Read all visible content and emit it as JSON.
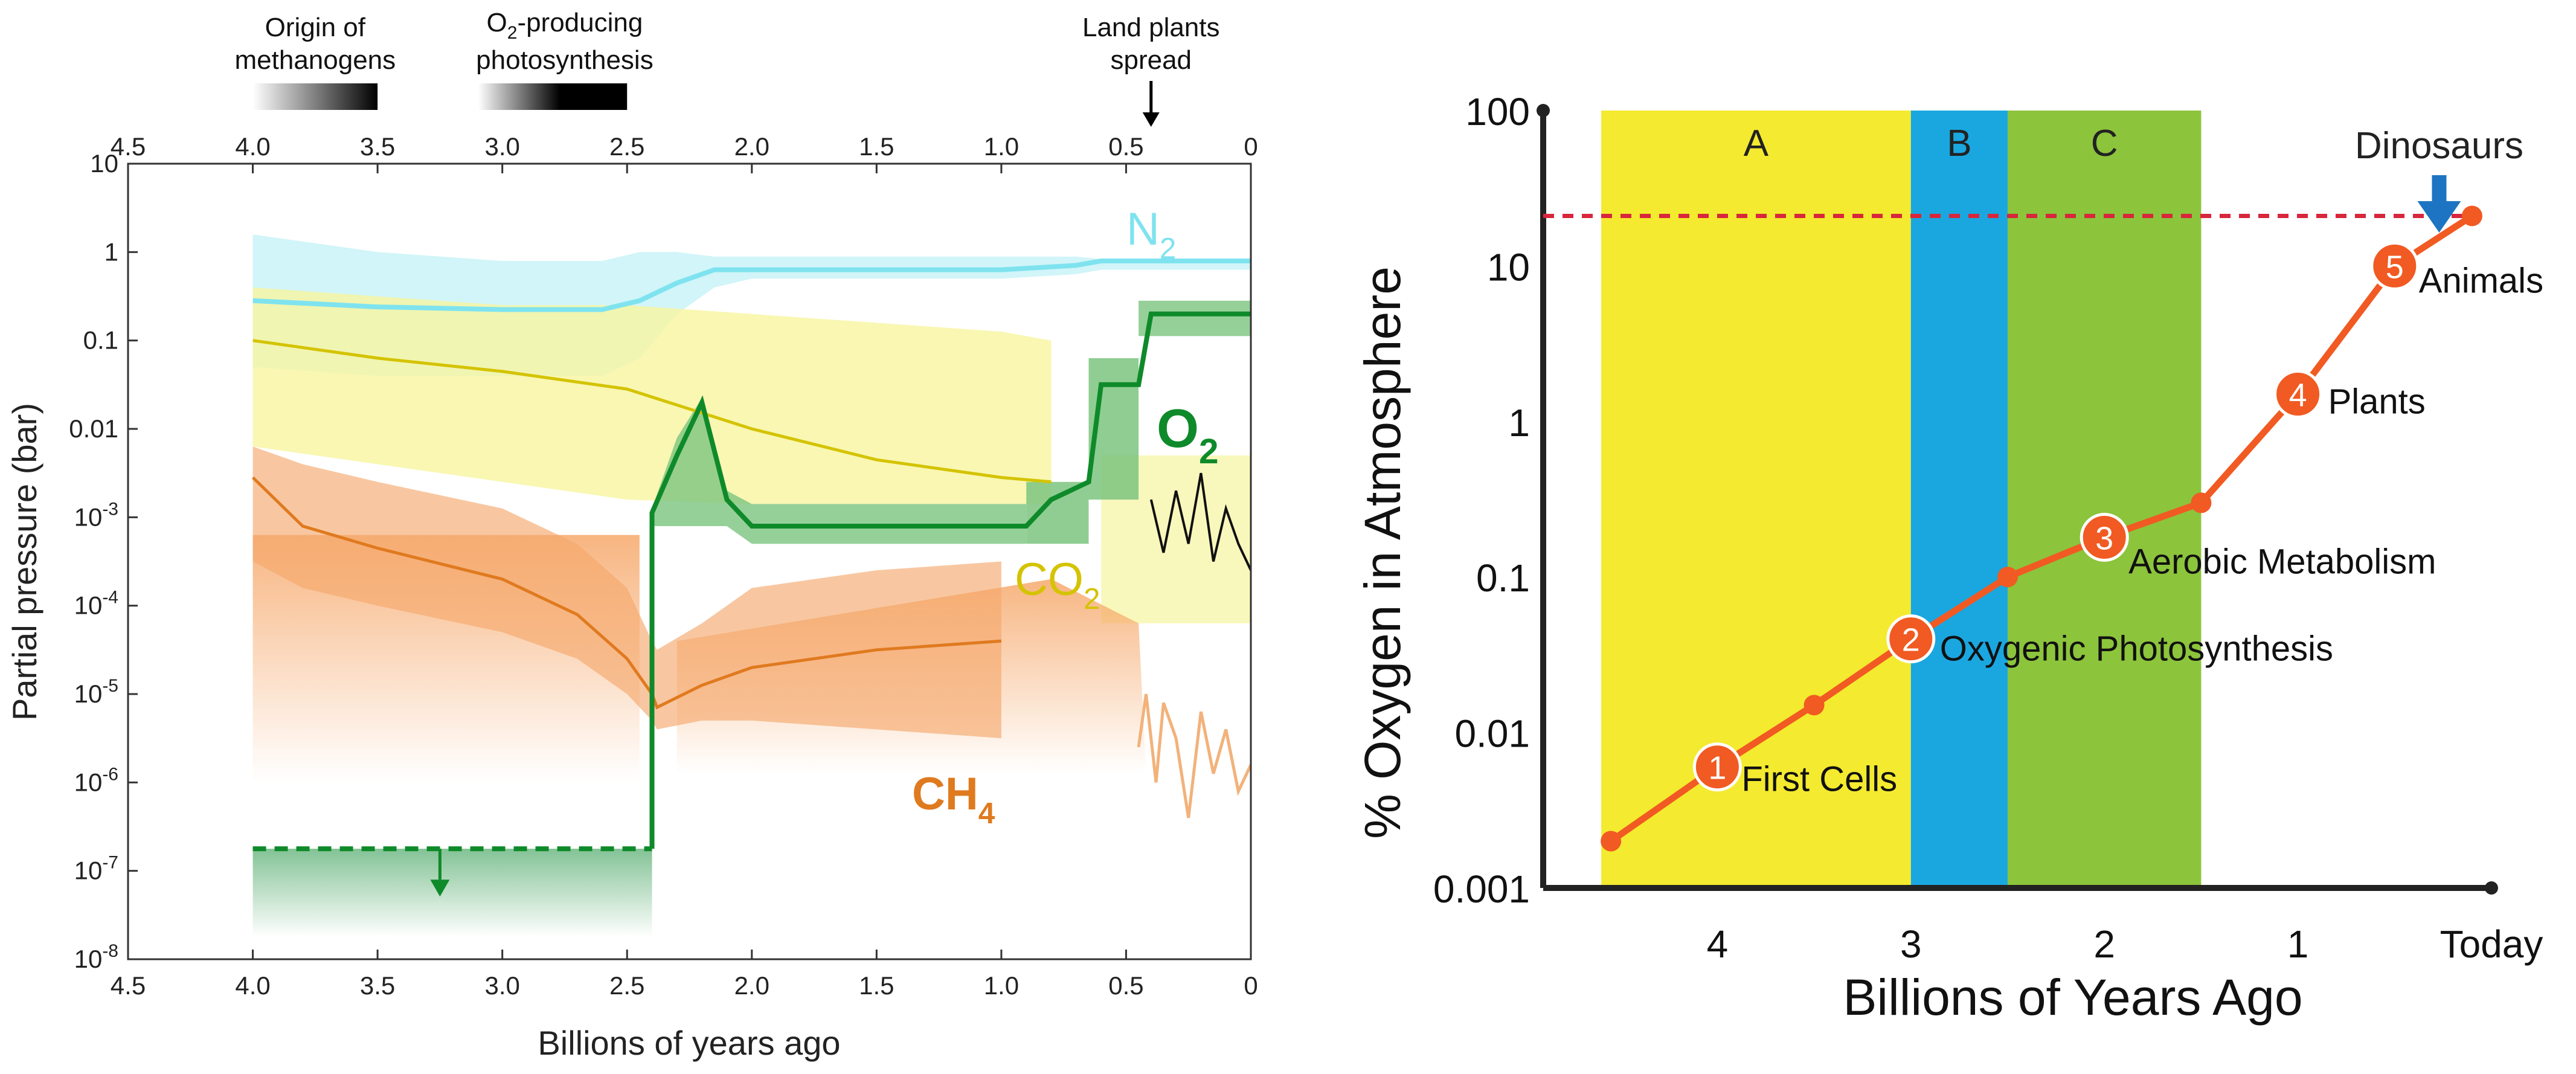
{
  "colors": {
    "n2": "#7fe3ef",
    "n2_band": "#c9f3f8",
    "co2": "#d4c300",
    "co2_band": "#f7f59f",
    "ch4": "#e07a1f",
    "ch4_band": "#f6b98a",
    "ch4_light": "#f2b27a",
    "o2": "#0f8a2a",
    "o2_band": "#7cc47f",
    "o2_band_light": "#cde8cf",
    "co2_measured": "#111111",
    "era_a": "#f4ea2f",
    "era_b": "#1aa7e0",
    "era_c": "#8cc43c",
    "oxygen_curve": "#f15a22",
    "dinosaur_arrow": "#1d74c2",
    "modern_line": "#d8263c",
    "axis": "#222222"
  },
  "chart_data": [
    {
      "type": "line",
      "title": "",
      "xlabel": "Billions of years ago",
      "ylabel": "Partial pressure (bar)",
      "xlim": [
        4.5,
        0
      ],
      "x_ticks": [
        "4.5",
        "4.0",
        "3.5",
        "3.0",
        "2.5",
        "2.0",
        "1.5",
        "1.0",
        "0.5",
        "0"
      ],
      "ylim_log10": [
        -8,
        1
      ],
      "y_ticks": [
        {
          "base": "10",
          "exp": "-8"
        },
        {
          "base": "10",
          "exp": "-7"
        },
        {
          "base": "10",
          "exp": "-6"
        },
        {
          "base": "10",
          "exp": "-5"
        },
        {
          "base": "10",
          "exp": "-4"
        },
        {
          "base": "10",
          "exp": "-3"
        },
        {
          "base": "0.01",
          "exp": ""
        },
        {
          "base": "0.1",
          "exp": ""
        },
        {
          "base": "1",
          "exp": ""
        },
        {
          "base": "10",
          "exp": ""
        }
      ],
      "series": [
        {
          "name": "N2",
          "label_main": "N",
          "label_sub": "2",
          "x": [
            4.0,
            3.5,
            3.0,
            2.6,
            2.45,
            2.3,
            2.15,
            2.0,
            1.0,
            0.7,
            0.6,
            0.4,
            0
          ],
          "log10_values": [
            -0.55,
            -0.62,
            -0.65,
            -0.65,
            -0.55,
            -0.35,
            -0.2,
            -0.2,
            -0.2,
            -0.15,
            -0.1,
            -0.1,
            -0.1
          ],
          "band_upper": [
            0.2,
            0.0,
            -0.1,
            -0.1,
            0.0,
            0.0,
            -0.05,
            -0.05,
            -0.05,
            -0.05,
            -0.08,
            -0.08,
            -0.08
          ],
          "band_lower": [
            -1.3,
            -1.4,
            -1.4,
            -1.4,
            -1.2,
            -0.7,
            -0.4,
            -0.3,
            -0.3,
            -0.25,
            -0.2,
            -0.2,
            -0.2
          ]
        },
        {
          "name": "CO2",
          "label_main": "CO",
          "label_sub": "2",
          "x": [
            4.0,
            3.5,
            3.0,
            2.5,
            2.0,
            1.5,
            1.0,
            0.8
          ],
          "log10_values": [
            -1.0,
            -1.2,
            -1.35,
            -1.55,
            -2.0,
            -2.35,
            -2.55,
            -2.6
          ],
          "band_upper": [
            -0.4,
            -0.5,
            -0.6,
            -0.6,
            -0.7,
            -0.8,
            -0.9,
            -1.0
          ],
          "band_lower": [
            -2.2,
            -2.4,
            -2.6,
            -2.8,
            -2.85,
            -2.85,
            -2.85,
            -2.85
          ]
        },
        {
          "name": "CH4",
          "label_main": "CH",
          "label_sub": "4",
          "x": [
            4.0,
            3.8,
            3.5,
            3.0,
            2.7,
            2.5,
            2.4,
            2.38,
            2.2,
            2.0,
            1.5,
            1.0
          ],
          "log10_values": [
            -2.55,
            -3.1,
            -3.35,
            -3.7,
            -4.1,
            -4.6,
            -5.0,
            -5.15,
            -4.9,
            -4.7,
            -4.5,
            -4.4
          ],
          "band_upper": [
            -2.2,
            -2.4,
            -2.6,
            -2.9,
            -3.3,
            -3.8,
            -4.4,
            -4.5,
            -4.2,
            -3.8,
            -3.6,
            -3.5
          ],
          "band_lower": [
            -3.5,
            -3.8,
            -4.0,
            -4.3,
            -4.6,
            -5.0,
            -5.3,
            -5.4,
            -5.3,
            -5.3,
            -5.4,
            -5.5
          ]
        },
        {
          "name": "O2",
          "label_main": "O",
          "label_sub": "2",
          "x": [
            4.0,
            2.4,
            2.4,
            2.3,
            2.2,
            2.1,
            2.0,
            1.5,
            0.9,
            0.8,
            0.65,
            0.6,
            0.45,
            0.4,
            0.3,
            0
          ],
          "log10_values": [
            -6.75,
            -6.75,
            -2.95,
            -2.3,
            -1.7,
            -2.8,
            -3.1,
            -3.1,
            -3.1,
            -2.8,
            -2.6,
            -1.5,
            -1.5,
            -0.7,
            -0.7,
            -0.7
          ],
          "upper_limit": {
            "x": [
              4.0,
              2.4
            ],
            "log10_value": -6.75,
            "arrow_at_x": 3.25
          }
        },
        {
          "name": "CO2 (recent record)",
          "x": [
            0.4,
            0.35,
            0.3,
            0.25,
            0.2,
            0.15,
            0.1,
            0.05,
            0
          ],
          "log10_values": [
            -2.8,
            -3.4,
            -2.7,
            -3.3,
            -2.5,
            -3.5,
            -2.9,
            -3.3,
            -3.6
          ]
        }
      ],
      "top_axis": {
        "ticks": [
          "4.5",
          "4.0",
          "3.5",
          "3.0",
          "2.5",
          "2.0",
          "1.5",
          "1.0",
          "0.5",
          "0"
        ]
      },
      "annotations": [
        {
          "text_lines": [
            "Origin of",
            "methanogens"
          ],
          "range": [
            4.0,
            3.5
          ]
        },
        {
          "text_lines": [
            "O",
            "-producing",
            "photosynthesis"
          ],
          "range": [
            3.0,
            2.5
          ],
          "sub": "2"
        },
        {
          "text_lines": [
            "Land plants",
            "spread"
          ],
          "arrow_at_x": 0.4
        }
      ]
    },
    {
      "type": "line",
      "title": "",
      "xlabel": "Billions of Years Ago",
      "ylabel": "% Oxygen in Atmosphere",
      "x_ticks": [
        "4",
        "3",
        "2",
        "1",
        "Today"
      ],
      "x_tick_values": [
        4,
        3,
        2,
        1,
        0
      ],
      "xlim": [
        4.9,
        0
      ],
      "y_ticks": [
        "0.001",
        "0.01",
        "0.1",
        "1",
        "10",
        "100"
      ],
      "ylim_log10": [
        -3,
        2
      ],
      "reference_line": {
        "value": 21
      },
      "eras": [
        {
          "label": "A",
          "from": 4.6,
          "to": 3.0
        },
        {
          "label": "B",
          "from": 3.0,
          "to": 2.5
        },
        {
          "label": "C",
          "from": 2.5,
          "to": 1.5
        }
      ],
      "series": [
        {
          "name": "atmospheric oxygen",
          "x": [
            4.55,
            4.0,
            3.5,
            3.0,
            2.5,
            2.0,
            1.5,
            1.0,
            0.5,
            0.1
          ],
          "values": [
            0.002,
            0.006,
            0.015,
            0.04,
            0.1,
            0.18,
            0.3,
            1.5,
            10,
            21
          ]
        }
      ],
      "milestones": [
        {
          "number": "1",
          "label": "First Cells",
          "x": 4.0,
          "value": 0.006
        },
        {
          "number": "2",
          "label": "Oxygenic Photosynthesis",
          "x": 3.0,
          "value": 0.04
        },
        {
          "number": "3",
          "label": "Aerobic Metabolism",
          "x": 2.0,
          "value": 0.18
        },
        {
          "number": "4",
          "label": "Plants",
          "x": 1.0,
          "value": 1.5
        },
        {
          "number": "5",
          "label": "Animals",
          "x": 0.5,
          "value": 10
        }
      ],
      "event": {
        "label": "Dinosaurs",
        "x": 0.27
      }
    }
  ]
}
